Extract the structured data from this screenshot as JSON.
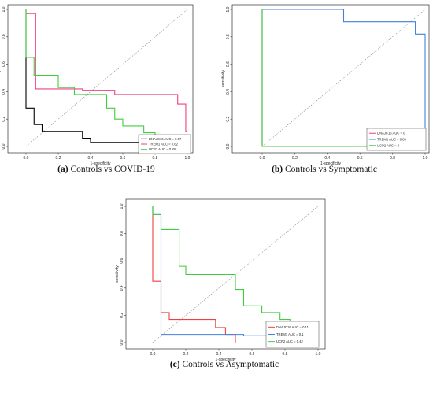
{
  "chart_data": [
    {
      "type": "line",
      "caption_letter": "(a)",
      "caption_text": "Controls vs COVID-19",
      "xlabel": "1-specificity",
      "ylabel": "sensitivity",
      "xlim": [
        0,
        1
      ],
      "ylim": [
        0,
        1
      ],
      "xticks": [
        "0.0",
        "0.2",
        "0.4",
        "0.6",
        "0.8",
        "1.0"
      ],
      "yticks": [
        "0.0",
        "0.2",
        "0.4",
        "0.6",
        "0.8",
        "1.0"
      ],
      "legend_position": "bottom-right",
      "diagonal": true,
      "grid": false,
      "series": [
        {
          "name": "DNAJC16 AUC = 0.07",
          "color": "#000000",
          "points": [
            [
              0,
              1
            ],
            [
              0,
              0.58
            ],
            [
              0,
              0.28
            ],
            [
              0.05,
              0.28
            ],
            [
              0.05,
              0.16
            ],
            [
              0.1,
              0.16
            ],
            [
              0.1,
              0.11
            ],
            [
              0.35,
              0.11
            ],
            [
              0.35,
              0.06
            ],
            [
              0.4,
              0.06
            ],
            [
              0.4,
              0.03
            ],
            [
              0.6,
              0.03
            ],
            [
              1,
              0.03
            ]
          ]
        },
        {
          "name": "TREM1 AUC = 0.62",
          "color": "#f04080",
          "points": [
            [
              0,
              0.97
            ],
            [
              0.06,
              0.97
            ],
            [
              0.06,
              0.42
            ],
            [
              0.35,
              0.42
            ],
            [
              0.35,
              0.41
            ],
            [
              0.55,
              0.41
            ],
            [
              0.55,
              0.38
            ],
            [
              0.94,
              0.38
            ],
            [
              0.94,
              0.31
            ],
            [
              0.99,
              0.31
            ],
            [
              0.99,
              0.11
            ],
            [
              1,
              0.11
            ]
          ]
        },
        {
          "name": "UCP2 AUC = 0.28",
          "color": "#40cc40",
          "points": [
            [
              0,
              1
            ],
            [
              0,
              0.65
            ],
            [
              0.05,
              0.65
            ],
            [
              0.05,
              0.52
            ],
            [
              0.2,
              0.52
            ],
            [
              0.2,
              0.43
            ],
            [
              0.3,
              0.43
            ],
            [
              0.3,
              0.38
            ],
            [
              0.5,
              0.38
            ],
            [
              0.5,
              0.28
            ],
            [
              0.55,
              0.28
            ],
            [
              0.55,
              0.2
            ],
            [
              0.6,
              0.2
            ],
            [
              0.6,
              0.15
            ],
            [
              0.73,
              0.15
            ],
            [
              0.73,
              0.1
            ],
            [
              0.8,
              0.1
            ],
            [
              0.8,
              0.03
            ],
            [
              1,
              0.03
            ]
          ]
        }
      ]
    },
    {
      "type": "line",
      "caption_letter": "(b)",
      "caption_text": "Controls vs Symptomatic",
      "xlabel": "1-specificity",
      "ylabel": "sensitivity",
      "xlim": [
        0,
        1
      ],
      "ylim": [
        0,
        1
      ],
      "xticks": [
        "0.0",
        "0.2",
        "0.4",
        "0.6",
        "0.8",
        "1.0"
      ],
      "yticks": [
        "0.0",
        "0.2",
        "0.4",
        "0.6",
        "0.8",
        "1.0"
      ],
      "legend_position": "bottom-right",
      "diagonal": true,
      "grid": false,
      "series": [
        {
          "name": "DNAJC16 AUC = 0",
          "color": "#f04080",
          "points": [
            [
              0,
              1
            ],
            [
              0,
              0
            ],
            [
              1,
              0
            ]
          ]
        },
        {
          "name": "TREM1 AUC = 0.89",
          "color": "#4080e0",
          "points": [
            [
              0,
              0
            ],
            [
              0,
              1
            ],
            [
              0.5,
              1
            ],
            [
              0.5,
              0.91
            ],
            [
              0.94,
              0.91
            ],
            [
              0.94,
              0.82
            ],
            [
              1,
              0.82
            ],
            [
              1,
              0
            ]
          ]
        },
        {
          "name": "UCP2 AUC = 0",
          "color": "#40cc40",
          "points": [
            [
              0,
              1
            ],
            [
              0,
              0
            ],
            [
              1,
              0
            ]
          ]
        }
      ]
    },
    {
      "type": "line",
      "caption_letter": "(c)",
      "caption_text": "Controls vs Asymptomatic",
      "xlabel": "1-specificity",
      "ylabel": "sensitivity",
      "xlim": [
        0,
        1
      ],
      "ylim": [
        0,
        1
      ],
      "xticks": [
        "0.0",
        "0.2",
        "0.4",
        "0.6",
        "0.8",
        "1.0"
      ],
      "yticks": [
        "0.0",
        "0.2",
        "0.4",
        "0.6",
        "0.8",
        "1.0"
      ],
      "legend_position": "bottom-right",
      "diagonal": true,
      "grid": false,
      "series": [
        {
          "name": "DNAJC16 AUC = 0.11",
          "color": "#f04040",
          "points": [
            [
              0,
              1
            ],
            [
              0,
              0.45
            ],
            [
              0.05,
              0.45
            ],
            [
              0.05,
              0.22
            ],
            [
              0.1,
              0.22
            ],
            [
              0.1,
              0.17
            ],
            [
              0.38,
              0.17
            ],
            [
              0.38,
              0.11
            ],
            [
              0.44,
              0.11
            ],
            [
              0.44,
              0.06
            ],
            [
              0.5,
              0.06
            ],
            [
              0.5,
              0
            ]
          ]
        },
        {
          "name": "TREM1 AUC = 0.1",
          "color": "#4080e0",
          "points": [
            [
              0,
              1
            ],
            [
              0,
              0.94
            ],
            [
              0.05,
              0.94
            ],
            [
              0.05,
              0.06
            ],
            [
              0.55,
              0.06
            ],
            [
              0.55,
              0.05
            ],
            [
              1,
              0.05
            ]
          ]
        },
        {
          "name": "UCP2 AUC = 0.42",
          "color": "#40cc40",
          "points": [
            [
              0,
              1
            ],
            [
              0,
              0.94
            ],
            [
              0.05,
              0.94
            ],
            [
              0.05,
              0.83
            ],
            [
              0.16,
              0.83
            ],
            [
              0.16,
              0.56
            ],
            [
              0.2,
              0.56
            ],
            [
              0.2,
              0.5
            ],
            [
              0.5,
              0.5
            ],
            [
              0.5,
              0.39
            ],
            [
              0.55,
              0.39
            ],
            [
              0.55,
              0.27
            ],
            [
              0.66,
              0.27
            ],
            [
              0.66,
              0.22
            ],
            [
              0.77,
              0.22
            ],
            [
              0.77,
              0.17
            ],
            [
              0.83,
              0.17
            ],
            [
              0.83,
              0
            ]
          ]
        }
      ]
    }
  ]
}
